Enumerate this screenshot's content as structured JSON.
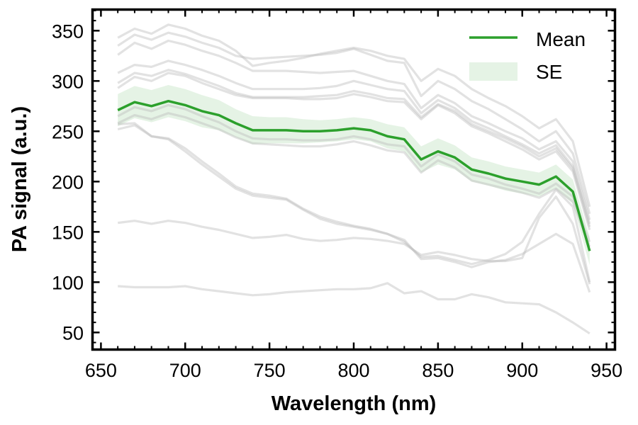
{
  "chart_data": {
    "type": "line",
    "xlabel": "Wavelength (nm)",
    "ylabel": "PA signal (a.u.)",
    "xlim": [
      645,
      955
    ],
    "ylim": [
      33,
      371
    ],
    "xticks": [
      650,
      700,
      750,
      800,
      850,
      900,
      950
    ],
    "yticks": [
      50,
      100,
      150,
      200,
      250,
      300,
      350
    ],
    "grid": false,
    "legend": {
      "placement": "top-right",
      "entries": [
        {
          "label": "Mean",
          "kind": "line",
          "color": "#2ca02c"
        },
        {
          "label": "SE",
          "kind": "patch",
          "color": "#d5ecd4"
        }
      ]
    },
    "x": [
      660,
      670,
      680,
      690,
      700,
      710,
      720,
      730,
      740,
      750,
      760,
      770,
      780,
      790,
      800,
      810,
      820,
      830,
      840,
      850,
      860,
      870,
      880,
      890,
      900,
      910,
      920,
      930,
      940
    ],
    "mean": {
      "name": "Mean",
      "color": "#2ca02c",
      "values": [
        271,
        279,
        275,
        280,
        276,
        270,
        266,
        258,
        251,
        251,
        251,
        250,
        250,
        251,
        253,
        251,
        245,
        242,
        222,
        230,
        224,
        212,
        208,
        203,
        200,
        197,
        205,
        190,
        131
      ]
    },
    "se": {
      "name": "SE",
      "color": "#2ca02c",
      "upper": [
        287,
        295,
        291,
        296,
        292,
        286,
        281,
        272,
        265,
        264,
        264,
        262,
        261,
        262,
        264,
        262,
        257,
        254,
        235,
        243,
        236,
        224,
        220,
        215,
        212,
        209,
        217,
        202,
        145
      ],
      "lower": [
        255,
        263,
        259,
        264,
        260,
        254,
        251,
        244,
        237,
        238,
        238,
        238,
        239,
        240,
        242,
        240,
        233,
        230,
        209,
        217,
        212,
        200,
        196,
        191,
        188,
        185,
        193,
        178,
        117
      ]
    },
    "individual_color": "#bbbbbb",
    "individual_series": [
      [
        343,
        352,
        347,
        356,
        352,
        345,
        340,
        330,
        315,
        318,
        320,
        323,
        327,
        330,
        333,
        330,
        325,
        322,
        300,
        312,
        305,
        292,
        283,
        275,
        265,
        253,
        262,
        240,
        175
      ],
      [
        335,
        346,
        341,
        348,
        344,
        338,
        333,
        325,
        322,
        323,
        324,
        325,
        326,
        328,
        332,
        326,
        320,
        318,
        285,
        300,
        292,
        280,
        272,
        262,
        252,
        240,
        250,
        228,
        168
      ],
      [
        326,
        338,
        332,
        340,
        336,
        330,
        325,
        318,
        310,
        310,
        310,
        309,
        308,
        309,
        310,
        305,
        300,
        297,
        273,
        286,
        278,
        265,
        258,
        250,
        243,
        232,
        240,
        220,
        162
      ],
      [
        308,
        316,
        314,
        320,
        316,
        311,
        305,
        298,
        292,
        292,
        292,
        292,
        293,
        295,
        300,
        296,
        292,
        290,
        268,
        281,
        273,
        260,
        253,
        245,
        237,
        228,
        236,
        215,
        158
      ],
      [
        298,
        308,
        305,
        311,
        307,
        301,
        295,
        288,
        284,
        284,
        284,
        284,
        285,
        286,
        290,
        287,
        283,
        282,
        264,
        277,
        270,
        257,
        250,
        243,
        235,
        225,
        233,
        213,
        155
      ],
      [
        293,
        304,
        300,
        308,
        305,
        298,
        292,
        286,
        283,
        283,
        283,
        282,
        282,
        283,
        287,
        284,
        280,
        279,
        262,
        276,
        268,
        255,
        248,
        240,
        232,
        222,
        230,
        210,
        152
      ],
      [
        265,
        274,
        270,
        276,
        272,
        265,
        259,
        250,
        243,
        242,
        242,
        241,
        241,
        242,
        245,
        242,
        237,
        235,
        215,
        227,
        220,
        207,
        203,
        197,
        193,
        188,
        198,
        185,
        140
      ],
      [
        258,
        266,
        262,
        268,
        264,
        258,
        252,
        244,
        238,
        237,
        236,
        235,
        235,
        237,
        240,
        236,
        231,
        229,
        209,
        221,
        214,
        201,
        197,
        193,
        189,
        184,
        193,
        180,
        135
      ],
      [
        257,
        258,
        245,
        242,
        230,
        217,
        205,
        193,
        186,
        184,
        182,
        172,
        163,
        158,
        155,
        152,
        148,
        140,
        125,
        126,
        122,
        118,
        122,
        128,
        140,
        168,
        192,
        175,
        100
      ],
      [
        252,
        256,
        245,
        243,
        233,
        220,
        208,
        195,
        188,
        186,
        183,
        173,
        165,
        160,
        156,
        153,
        148,
        142,
        123,
        124,
        120,
        115,
        120,
        122,
        128,
        138,
        148,
        138,
        90
      ],
      [
        159,
        161,
        158,
        161,
        159,
        155,
        152,
        148,
        144,
        145,
        147,
        143,
        141,
        142,
        144,
        143,
        141,
        138,
        127,
        130,
        127,
        123,
        121,
        121,
        124,
        164,
        185,
        158,
        98
      ],
      [
        96,
        95,
        95,
        95,
        96,
        93,
        91,
        89,
        87,
        88,
        90,
        91,
        92,
        93,
        93,
        94,
        99,
        89,
        91,
        83,
        83,
        88,
        85,
        80,
        79,
        78,
        70,
        60,
        49
      ]
    ]
  }
}
